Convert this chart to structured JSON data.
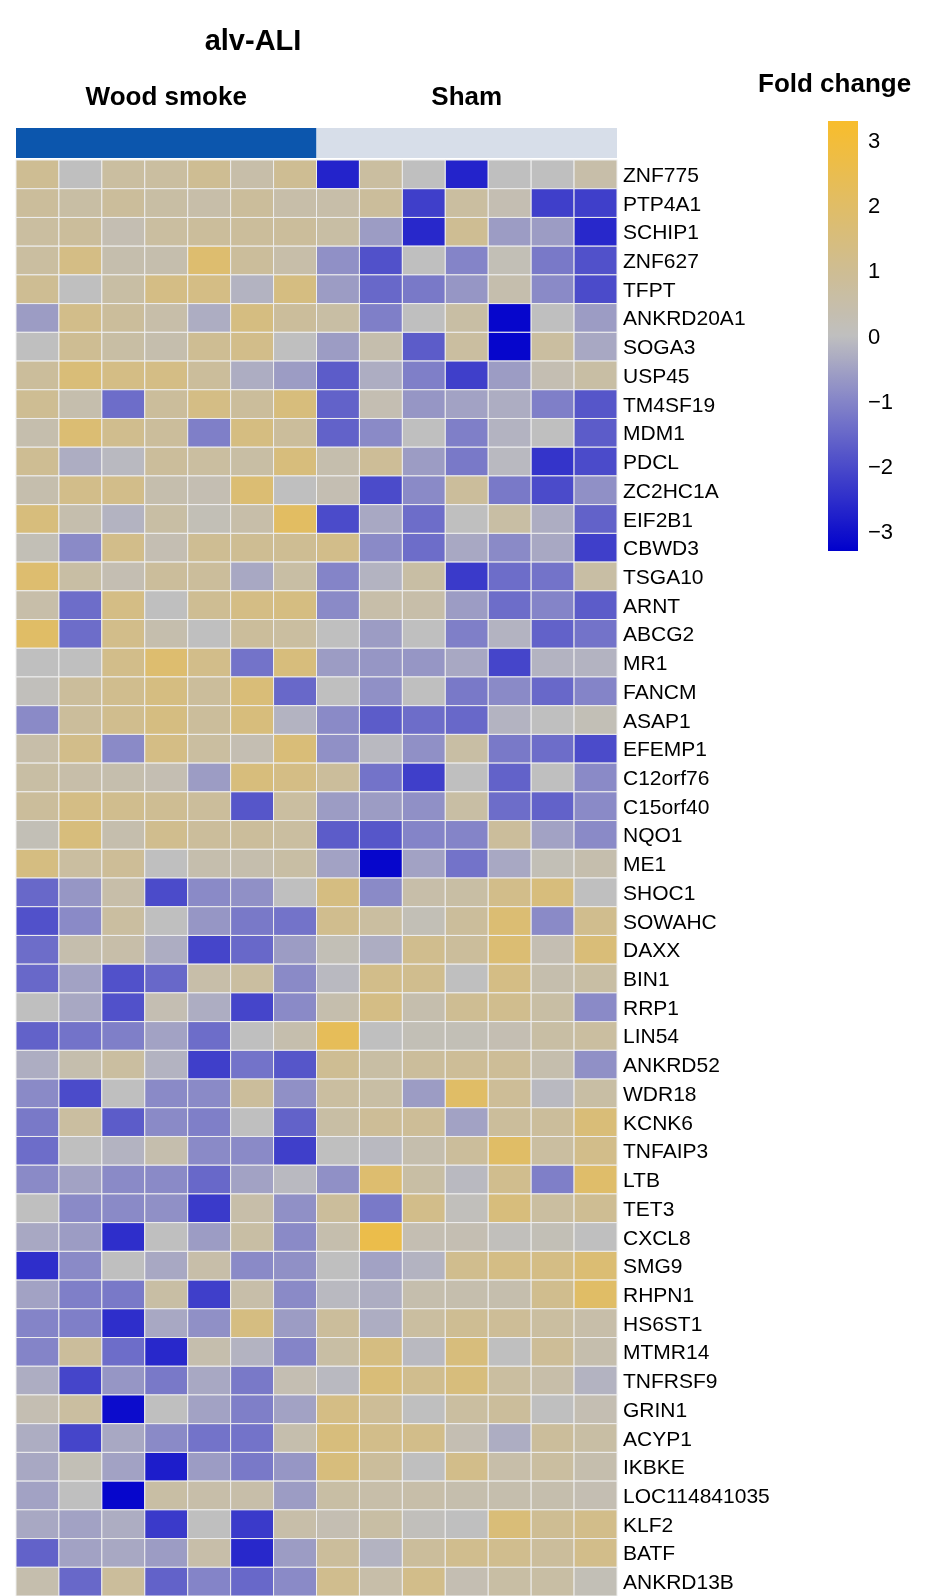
{
  "chart_data": {
    "type": "heatmap",
    "title": "alv-ALI",
    "clabel": "Fold change",
    "annotations": [
      "Wood smoke",
      "Sham"
    ],
    "categories": [
      null,
      null,
      null,
      null,
      null,
      null,
      null,
      null,
      null,
      null,
      null,
      null,
      null,
      null
    ],
    "y_categories": [
      "ZNF775",
      "PTP4A1",
      "SCHIP1",
      "ZNF627",
      "TFPT",
      "ANKRD20A1",
      "SOGA3",
      "USP45",
      "TM4SF19",
      "MDM1",
      "PDCL",
      "ZC2HC1A",
      "EIF2B1",
      "CBWD3",
      "TSGA10",
      "ARNT",
      "ABCG2",
      "MR1",
      "FANCM",
      "ASAP1",
      "EFEMP1",
      "C12orf76",
      "C15orf40",
      "NQO1",
      "ME1",
      "SHOC1",
      "SOWAHC",
      "DAXX",
      "BIN1",
      "RRP1",
      "LIN54",
      "ANKRD52",
      "WDR18",
      "KCNK6",
      "TNFAIP3",
      "LTB",
      "TET3",
      "CXCL8",
      "SMG9",
      "RHPN1",
      "HS6ST1",
      "MTMR14",
      "TNFRSF9",
      "GRIN1",
      "ACYP1",
      "IKBKE",
      "LOC114841035",
      "KLF2",
      "BATF",
      "ANKRD13B"
    ],
    "clim": [
      -3.3,
      3.3
    ],
    "cticks": [
      3,
      2,
      1,
      0,
      {
        "value": -1,
        "label": "−1"
      },
      {
        "value": -2,
        "label": "−2"
      },
      {
        "value": -3,
        "label": "−3"
      }
    ],
    "cells": [
      [
        1,
        0,
        0.7,
        0.7,
        1,
        0.5,
        1,
        -2.7,
        0.7,
        0,
        -2.7,
        0,
        0,
        0.5
      ],
      [
        0.8,
        0.6,
        0.8,
        0.6,
        0.5,
        0.8,
        0.5,
        0.5,
        0.8,
        -2.2,
        0.7,
        0.3,
        -2.2,
        -2.2
      ],
      [
        0.7,
        0.8,
        0.3,
        0.7,
        0.8,
        0.8,
        0.8,
        0.6,
        -0.6,
        -2.6,
        1,
        -0.6,
        -0.6,
        -2.6
      ],
      [
        0.7,
        1.3,
        0.4,
        0.4,
        1.8,
        0.8,
        0.5,
        -0.8,
        -1.9,
        0,
        -1,
        0.2,
        -1.2,
        -1.9
      ],
      [
        1,
        0,
        0.6,
        1.3,
        1.3,
        -0.2,
        1.4,
        -0.6,
        -1.5,
        -1.2,
        -0.7,
        0.4,
        -0.9,
        -2
      ],
      [
        -0.6,
        1.2,
        0.8,
        0.5,
        -0.3,
        1.4,
        0.8,
        0.6,
        -1.1,
        0,
        0.6,
        -3.2,
        0,
        -0.6
      ],
      [
        0,
        1,
        0.6,
        0.4,
        1,
        1.2,
        0,
        -0.6,
        0.4,
        -1.7,
        0.7,
        -3.2,
        0.7,
        -0.4
      ],
      [
        0.8,
        1.6,
        1.3,
        1.3,
        0.8,
        -0.3,
        -0.6,
        -1.7,
        -0.3,
        -1.1,
        -2.2,
        -0.6,
        0.3,
        0.6
      ],
      [
        1,
        0.4,
        -1.4,
        0.8,
        1.3,
        0.8,
        1.5,
        -1.6,
        0.3,
        -0.7,
        -0.5,
        -0.3,
        -1.1,
        -1.8
      ],
      [
        0.4,
        1.7,
        1.1,
        0.8,
        -1.1,
        1.4,
        0.8,
        -1.6,
        -0.9,
        0,
        -1.1,
        -0.2,
        0,
        -1.7
      ],
      [
        1,
        -0.3,
        -0.1,
        0.8,
        0.7,
        0.6,
        1.5,
        0.4,
        0.9,
        -0.6,
        -1.2,
        -0.1,
        -2.4,
        -2
      ],
      [
        0.4,
        1.2,
        1.2,
        0.4,
        0.3,
        1.7,
        0,
        0.3,
        -2,
        -0.9,
        0.8,
        -1.2,
        -2,
        -0.8
      ],
      [
        1.5,
        0.4,
        -0.2,
        0.6,
        0.2,
        0.5,
        2.1,
        -2,
        -0.4,
        -1.4,
        0,
        0.6,
        -0.3,
        -1.6
      ],
      [
        0.2,
        -0.9,
        1.2,
        0.3,
        1,
        1,
        1,
        1.2,
        -0.9,
        -1.4,
        -0.4,
        -0.9,
        -0.4,
        -2.2
      ],
      [
        1.8,
        0.6,
        0.3,
        0.8,
        0.8,
        -0.4,
        0.6,
        -1,
        -0.2,
        0.6,
        -2.3,
        -1.4,
        -1.3,
        0.6
      ],
      [
        0.5,
        -1.4,
        1.3,
        0,
        1,
        1.3,
        1.4,
        -0.9,
        0.5,
        0.5,
        -0.6,
        -1.4,
        -1,
        -1.7
      ],
      [
        2,
        -1.4,
        1.2,
        0.4,
        0,
        0.8,
        0.7,
        0,
        -0.6,
        0,
        -1.1,
        -0.2,
        -1.6,
        -1.3
      ],
      [
        0,
        0,
        1.2,
        1.8,
        1.2,
        -1.3,
        1.5,
        -0.6,
        -0.7,
        -0.7,
        -0.4,
        -2.1,
        -0.2,
        -0.2
      ],
      [
        0.1,
        0.8,
        1.1,
        1.4,
        0.8,
        1.6,
        -1.5,
        0,
        -0.8,
        0,
        -1.2,
        -0.9,
        -1.5,
        -1
      ],
      [
        -0.9,
        0.8,
        1.1,
        1.4,
        0.8,
        1.5,
        -0.2,
        -0.9,
        -1.7,
        -1.4,
        -1.5,
        -0.2,
        0,
        0.2
      ],
      [
        0.5,
        1.2,
        -0.9,
        1.3,
        0.7,
        0.3,
        1.6,
        -0.8,
        -0.1,
        -0.8,
        0.6,
        -1.2,
        -1.4,
        -2
      ],
      [
        0.6,
        0.5,
        0.4,
        0.3,
        -0.6,
        1.5,
        1.3,
        0.8,
        -1.3,
        -2.2,
        0,
        -1.6,
        0,
        -0.9
      ],
      [
        0.8,
        1.3,
        1.1,
        1,
        0.8,
        -1.8,
        0.7,
        -0.6,
        -0.6,
        -0.8,
        0.6,
        -1.4,
        -1.6,
        -0.9
      ],
      [
        0.2,
        1.5,
        0.4,
        1.1,
        0.8,
        0.8,
        0.7,
        -1.7,
        -1.8,
        -1,
        -1,
        0.8,
        -0.5,
        -0.9
      ],
      [
        1.4,
        0.7,
        0.9,
        0,
        0.4,
        0.4,
        0.6,
        -0.5,
        -3.2,
        -0.5,
        -1.3,
        -0.4,
        0.2,
        0.4
      ],
      [
        -1.5,
        -0.7,
        0.5,
        -2,
        -0.9,
        -0.8,
        0,
        1.4,
        -0.9,
        0.5,
        0.6,
        1.2,
        1.5,
        0
      ],
      [
        -1.9,
        -0.9,
        0.7,
        0,
        -0.7,
        -1.2,
        -1.3,
        1.1,
        0.7,
        0.2,
        0.8,
        1.7,
        -0.9,
        1.1
      ],
      [
        -1.4,
        0.4,
        0.5,
        -0.3,
        -2.1,
        -1.5,
        -0.6,
        0.2,
        -0.3,
        1.1,
        0.8,
        1.7,
        0.3,
        1.6
      ],
      [
        -1.5,
        -0.5,
        -1.9,
        -1.5,
        0.5,
        0.7,
        -0.9,
        -0.1,
        1.2,
        1.1,
        0,
        1.3,
        0.4,
        0.6
      ],
      [
        0,
        -0.4,
        -1.9,
        0.3,
        -0.3,
        -2.1,
        -0.9,
        0.4,
        1.3,
        0.4,
        1,
        1.1,
        0.6,
        -0.9
      ],
      [
        -1.6,
        -1.3,
        -1.1,
        -0.5,
        -1.4,
        0,
        0.4,
        2.3,
        0,
        0.2,
        0.2,
        0.3,
        0.6,
        0.7
      ],
      [
        -0.3,
        0.4,
        0.7,
        -0.2,
        -2.2,
        -1.3,
        -1.8,
        1,
        0.6,
        0.8,
        0.9,
        0.9,
        0.4,
        -0.8
      ],
      [
        -0.9,
        -2,
        0,
        -0.9,
        -0.9,
        0.8,
        -0.8,
        0.7,
        0.6,
        -0.6,
        2,
        0.9,
        -0.1,
        0.6
      ],
      [
        -1.2,
        0.7,
        -1.7,
        -0.9,
        -1.1,
        0,
        -1.6,
        0.6,
        0.9,
        0.9,
        -0.5,
        0.8,
        0.8,
        1.6
      ],
      [
        -1.4,
        0,
        -0.2,
        0.4,
        -0.9,
        -0.9,
        -2.2,
        0,
        -0.1,
        0.4,
        0.8,
        2,
        0.7,
        1.2
      ],
      [
        -0.9,
        -0.5,
        -0.9,
        -0.9,
        -1.5,
        -0.5,
        -0.1,
        -0.8,
        1.8,
        0.6,
        -0.1,
        1.1,
        -1.1,
        1.9
      ],
      [
        0,
        -0.9,
        -0.9,
        -0.8,
        -2.3,
        0.5,
        -0.8,
        0.8,
        -1.2,
        1.2,
        0.1,
        1.5,
        0.7,
        1
      ],
      [
        -0.4,
        -0.6,
        -2.5,
        0,
        -0.6,
        0.6,
        -0.9,
        0.4,
        2.6,
        0.3,
        0.3,
        0.1,
        0.2,
        0
      ],
      [
        -2.5,
        -0.9,
        0,
        -0.4,
        0.5,
        -0.9,
        -0.8,
        0,
        -0.5,
        -0.2,
        1.1,
        1.3,
        1.3,
        1.7
      ],
      [
        -0.5,
        -1.1,
        -1.2,
        0.6,
        -2.2,
        0.5,
        -0.9,
        -0.1,
        -0.3,
        0.4,
        0.4,
        0.4,
        1.1,
        2
      ],
      [
        -1,
        -1.1,
        -2.5,
        -0.4,
        -0.8,
        1.4,
        -0.6,
        0.8,
        -0.3,
        0.7,
        1,
        0.9,
        0.7,
        0.5
      ],
      [
        -1,
        0.8,
        -1.4,
        -2.6,
        0.4,
        -0.2,
        -1,
        0.6,
        1.4,
        -0.1,
        1.5,
        0,
        0.9,
        0.4
      ],
      [
        -0.3,
        -2.1,
        -0.7,
        -1.2,
        -0.4,
        -1.2,
        0.3,
        -0.1,
        1.6,
        1.1,
        1.5,
        0.7,
        0.5,
        -0.2
      ],
      [
        0.3,
        0.7,
        -3.1,
        0,
        -0.5,
        -1.1,
        -0.5,
        1.3,
        0.9,
        0,
        0.7,
        0.8,
        0,
        0.3
      ],
      [
        -0.3,
        -2.1,
        -0.4,
        -0.9,
        -1.3,
        -1.3,
        0.4,
        1.5,
        1.2,
        1.2,
        0.3,
        -0.3,
        0.8,
        0.6
      ],
      [
        -0.4,
        0.2,
        -0.5,
        -2.8,
        -0.6,
        -1.2,
        -0.7,
        1.5,
        0.8,
        0,
        1.2,
        0.5,
        0.7,
        0.4
      ],
      [
        -0.5,
        0,
        -3.2,
        0.6,
        0.5,
        0.5,
        -0.6,
        0.6,
        0.5,
        0.5,
        0.4,
        0.4,
        0.4,
        0.3
      ],
      [
        -0.4,
        -0.5,
        -0.3,
        -2.3,
        0,
        -2.3,
        0.5,
        0.3,
        0.6,
        0.1,
        0,
        1.6,
        1,
        1.2
      ],
      [
        -1.6,
        -0.5,
        -0.4,
        -0.6,
        0.5,
        -2.6,
        -0.6,
        0.8,
        -0.2,
        0.8,
        1.1,
        1.1,
        0.8,
        1.2
      ],
      [
        0.4,
        -1.5,
        0.8,
        -1.6,
        -1,
        -1.5,
        -0.9,
        1.1,
        0.5,
        1.2,
        0.3,
        0.6,
        0.6,
        0.2
      ]
    ]
  }
}
